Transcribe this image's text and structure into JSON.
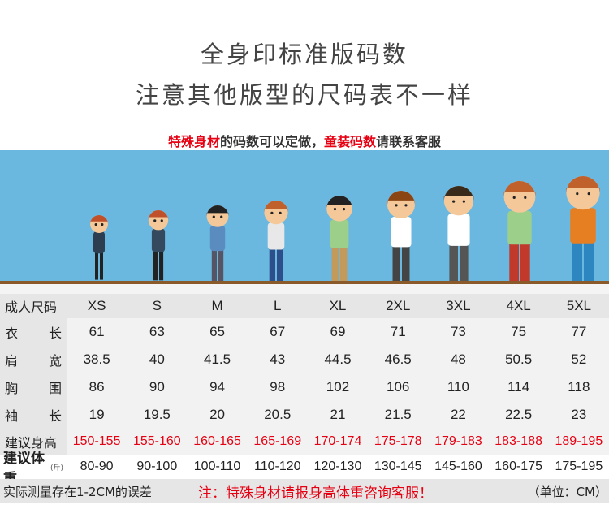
{
  "title": "全身印标准版码数",
  "subtitle": "注意其他版型的尺码表不一样",
  "notice": {
    "red1": "特殊身材",
    "mid": "的码数可以定做，",
    "red2": "童装码数",
    "end": "请联系客服"
  },
  "table": {
    "header_label": "成人尺码",
    "sizes": [
      "XS",
      "S",
      "M",
      "L",
      "XL",
      "2XL",
      "3XL",
      "4XL",
      "5XL"
    ],
    "rows": [
      {
        "label_a": "衣",
        "label_b": "长",
        "values": [
          "61",
          "63",
          "65",
          "67",
          "69",
          "71",
          "73",
          "75",
          "77"
        ]
      },
      {
        "label_a": "肩",
        "label_b": "宽",
        "values": [
          "38.5",
          "40",
          "41.5",
          "43",
          "44.5",
          "46.5",
          "48",
          "50.5",
          "52"
        ]
      },
      {
        "label_a": "胸",
        "label_b": "围",
        "values": [
          "86",
          "90",
          "94",
          "98",
          "102",
          "106",
          "110",
          "114",
          "118"
        ]
      },
      {
        "label_a": "袖",
        "label_b": "长",
        "values": [
          "19",
          "19.5",
          "20",
          "20.5",
          "21",
          "21.5",
          "22",
          "22.5",
          "23"
        ]
      }
    ],
    "height_label": "建议身高",
    "heights": [
      "150-155",
      "155-160",
      "160-165",
      "165-169",
      "170-174",
      "175-178",
      "179-183",
      "183-188",
      "189-195"
    ],
    "weight_label": "建议体重",
    "weight_unit": "(斤)",
    "weights": [
      "80-90",
      "90-100",
      "100-110",
      "110-120",
      "120-130",
      "130-145",
      "145-160",
      "160-175",
      "175-195"
    ]
  },
  "footer": {
    "left": "实际测量存在1-2CM的误差",
    "center": "注：特殊身材请报身高体重咨询客服！",
    "right": "（单位：CM）"
  },
  "colors": {
    "banner": "#6ab7e0",
    "accent_red": "#e60012",
    "ground": "#8b5a2b"
  }
}
